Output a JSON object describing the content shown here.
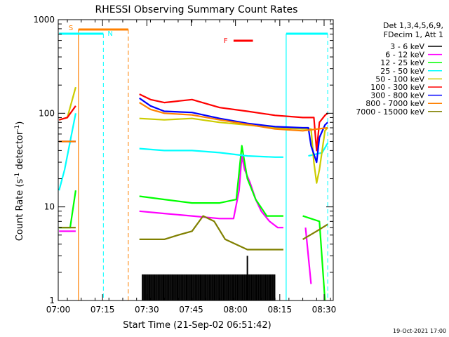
{
  "chart_data": {
    "type": "line",
    "title": "RHESSI Observing Summary Count Rates",
    "xlabel": "Start Time (21-Sep-02 06:51:42)",
    "ylabel_main": "Count Rate (s",
    "ylabel_sup": "-1",
    "ylabel_mid": " detector",
    "ylabel_sup2": "-1",
    "ylabel_end": ")",
    "y_scale": "log",
    "ylim": [
      1,
      1000
    ],
    "xlim_minutes": [
      6.8667,
      100.0
    ],
    "x_ticks": [
      {
        "m": 51.7,
        "label": "07:00"
      },
      {
        "m": 67.7,
        "label": "07:15"
      },
      {
        "m": 83.7,
        "label": "07:30"
      },
      {
        "m": 99.7,
        "label": "07:45"
      },
      {
        "m": 115.7,
        "label": "08:00"
      },
      {
        "m": 131.7,
        "label": "08:15"
      },
      {
        "m": 147.7,
        "label": "08:30"
      }
    ],
    "y_ticks": [
      {
        "v": 1,
        "label": "1"
      },
      {
        "v": 10,
        "label": "10"
      },
      {
        "v": 100,
        "label": "100"
      },
      {
        "v": 1000,
        "label": "1000"
      }
    ],
    "legend": {
      "header1": "Det 1,3,4,5,6,9,",
      "header2": "FDecim 1, Att 1",
      "entries": [
        {
          "label": "3 - 6 keV",
          "color": "#000000"
        },
        {
          "label": "6 - 12 keV",
          "color": "#ff00ff"
        },
        {
          "label": "12 - 25 keV",
          "color": "#00ff00"
        },
        {
          "label": "25 - 50 keV",
          "color": "#00ffff"
        },
        {
          "label": "50 - 100 keV",
          "color": "#cccc00"
        },
        {
          "label": "100 - 300 keV",
          "color": "#ff0000"
        },
        {
          "label": "300 - 800 keV",
          "color": "#0000ff"
        },
        {
          "label": "800 - 7000 keV",
          "color": "#ff8000"
        },
        {
          "label": "7000 - 15000 keV",
          "color": "#808000"
        }
      ]
    },
    "annotations": {
      "saa": {
        "label": "S",
        "color": "#ff8000",
        "start": "06:59",
        "end": "07:17"
      },
      "night": {
        "label": "N",
        "color": "#00ffff",
        "periods": [
          [
            "06:52",
            "07:08"
          ],
          [
            "08:14",
            "08:29"
          ]
        ]
      },
      "flare": {
        "label": "F",
        "color": "#ff0000",
        "start": "07:55",
        "end": "08:02"
      }
    },
    "timestamp": "19-Oct-2021 17:00",
    "series": [
      {
        "name": "3 - 6 keV",
        "color": "#000000",
        "segments": [
          [
            [
              "07:22",
              1.9
            ],
            [
              "07:35",
              1.9
            ],
            [
              "07:50",
              1.9
            ],
            [
              "08:00",
              1.9
            ],
            [
              "08:05",
              1.8
            ],
            [
              "08:10",
              1.8
            ]
          ]
        ],
        "spike": [
          "08:00",
          3.0
        ]
      },
      {
        "name": "6 - 12 keV",
        "color": "#ff00ff",
        "segments": [
          [
            [
              "06:52",
              5.5
            ],
            [
              "06:58",
              5.5
            ]
          ],
          [
            [
              "07:21",
              9.0
            ],
            [
              "07:30",
              8.5
            ],
            [
              "07:40",
              8.0
            ],
            [
              "07:50",
              7.5
            ],
            [
              "07:55",
              7.5
            ],
            [
              "07:57",
              15
            ],
            [
              "07:58",
              35
            ],
            [
              "07:59",
              25
            ],
            [
              "08:01",
              18
            ],
            [
              "08:03",
              12
            ],
            [
              "08:05",
              9
            ],
            [
              "08:08",
              7
            ],
            [
              "08:11",
              6
            ],
            [
              "08:13",
              6
            ]
          ],
          [
            [
              "08:21",
              6
            ],
            [
              "08:23",
              1.5
            ]
          ]
        ]
      },
      {
        "name": "12 - 25 keV",
        "color": "#00ff00",
        "segments": [
          [
            [
              "06:52",
              6
            ],
            [
              "06:56",
              6
            ],
            [
              "06:58",
              15
            ]
          ],
          [
            [
              "07:21",
              13
            ],
            [
              "07:30",
              12
            ],
            [
              "07:40",
              11
            ],
            [
              "07:50",
              11
            ],
            [
              "07:56",
              12
            ],
            [
              "07:58",
              45
            ],
            [
              "08:00",
              20
            ],
            [
              "08:03",
              12
            ],
            [
              "08:07",
              8
            ],
            [
              "08:11",
              8
            ],
            [
              "08:13",
              8
            ]
          ],
          [
            [
              "08:20",
              8
            ],
            [
              "08:26",
              7
            ],
            [
              "08:28",
              1
            ]
          ]
        ]
      },
      {
        "name": "25 - 50 keV",
        "color": "#00ffff",
        "segments": [
          [
            [
              "06:52",
              15
            ],
            [
              "06:54",
              25
            ],
            [
              "06:56",
              50
            ],
            [
              "06:58",
              100
            ]
          ],
          [
            [
              "07:21",
              42
            ],
            [
              "07:30",
              40
            ],
            [
              "07:40",
              40
            ],
            [
              "07:50",
              38
            ],
            [
              "08:00",
              35
            ],
            [
              "08:10",
              34
            ],
            [
              "08:13",
              34
            ]
          ],
          [
            [
              "08:22",
              35
            ],
            [
              "08:27",
              38
            ],
            [
              "08:29",
              48
            ]
          ]
        ]
      },
      {
        "name": "50 - 100 keV",
        "color": "#cccc00",
        "segments": [
          [
            [
              "06:52",
              85
            ],
            [
              "06:55",
              90
            ],
            [
              "06:58",
              190
            ]
          ],
          [
            [
              "07:21",
              88
            ],
            [
              "07:30",
              85
            ],
            [
              "07:40",
              88
            ],
            [
              "07:50",
              80
            ],
            [
              "08:00",
              75
            ],
            [
              "08:10",
              70
            ],
            [
              "08:20",
              68
            ],
            [
              "08:23",
              68
            ],
            [
              "08:24",
              30
            ],
            [
              "08:25",
              18
            ],
            [
              "08:26",
              25
            ],
            [
              "08:28",
              65
            ],
            [
              "08:29",
              70
            ]
          ]
        ]
      },
      {
        "name": "100 - 300 keV",
        "color": "#ff0000",
        "segments": [
          [
            [
              "06:52",
              85
            ],
            [
              "06:55",
              90
            ],
            [
              "06:58",
              120
            ]
          ],
          [
            [
              "07:21",
              160
            ],
            [
              "07:25",
              140
            ],
            [
              "07:30",
              130
            ],
            [
              "07:40",
              140
            ],
            [
              "07:50",
              115
            ],
            [
              "08:00",
              105
            ],
            [
              "08:10",
              95
            ],
            [
              "08:20",
              90
            ],
            [
              "08:24",
              90
            ],
            [
              "08:25",
              40
            ],
            [
              "08:26",
              80
            ],
            [
              "08:28",
              95
            ],
            [
              "08:29",
              100
            ]
          ]
        ]
      },
      {
        "name": "300 - 800 keV",
        "color": "#0000ff",
        "segments": [
          [
            [
              "06:52",
              50
            ],
            [
              "06:58",
              50
            ]
          ],
          [
            [
              "07:21",
              145
            ],
            [
              "07:25",
              120
            ],
            [
              "07:30",
              105
            ],
            [
              "07:40",
              102
            ],
            [
              "07:50",
              88
            ],
            [
              "08:00",
              78
            ],
            [
              "08:10",
              72
            ],
            [
              "08:20",
              70
            ],
            [
              "08:22",
              70
            ],
            [
              "08:23",
              45
            ],
            [
              "08:25",
              30
            ],
            [
              "08:26",
              55
            ],
            [
              "08:28",
              75
            ],
            [
              "08:29",
              80
            ]
          ]
        ]
      },
      {
        "name": "800 - 7000 keV",
        "color": "#ff8000",
        "segments": [
          [
            [
              "06:52",
              50
            ],
            [
              "06:58",
              50
            ]
          ],
          [
            [
              "07:21",
              130
            ],
            [
              "07:25",
              110
            ],
            [
              "07:30",
              100
            ],
            [
              "07:40",
              96
            ],
            [
              "07:50",
              85
            ],
            [
              "08:00",
              76
            ],
            [
              "08:10",
              68
            ],
            [
              "08:20",
              65
            ],
            [
              "08:29",
              70
            ]
          ]
        ]
      },
      {
        "name": "7000 - 15000 keV",
        "color": "#808000",
        "segments": [
          [
            [
              "06:52",
              6.0
            ],
            [
              "06:58",
              6.0
            ]
          ],
          [
            [
              "07:21",
              4.5
            ],
            [
              "07:30",
              4.5
            ],
            [
              "07:35",
              5.0
            ],
            [
              "07:40",
              5.5
            ],
            [
              "07:44",
              8.0
            ],
            [
              "07:48",
              7.0
            ],
            [
              "07:52",
              4.5
            ],
            [
              "08:00",
              3.5
            ],
            [
              "08:10",
              3.5
            ],
            [
              "08:13",
              3.5
            ]
          ],
          [
            [
              "08:20",
              4.5
            ],
            [
              "08:25",
              5.5
            ],
            [
              "08:29",
              6.5
            ]
          ]
        ]
      }
    ]
  }
}
